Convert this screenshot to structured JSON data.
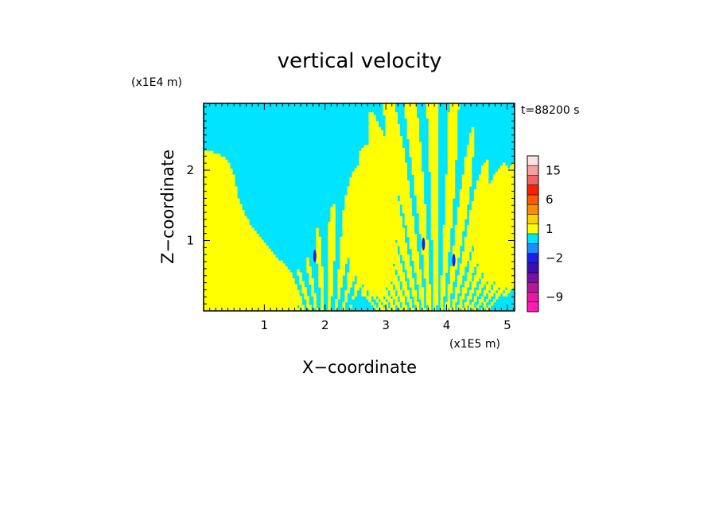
{
  "chart_data": {
    "type": "heatmap",
    "title": "vertical velocity",
    "xlabel": "X−coordinate",
    "ylabel": "Z−coordinate",
    "x_unit": "(x1E5 m)",
    "y_unit": "(x1E4 m)",
    "time_label": "t=88200 s",
    "xlim": [
      0,
      5.12
    ],
    "ylim": [
      0,
      2.95
    ],
    "x_ticks": [
      "1",
      "2",
      "3",
      "4",
      "5"
    ],
    "y_ticks": [
      "1",
      "2"
    ],
    "colorbar": {
      "levels": [
        {
          "value": -12,
          "color": "#ff1ab4"
        },
        {
          "value": -9,
          "color": "#e619a6"
        },
        {
          "value": -6,
          "color": "#b4169c"
        },
        {
          "value": -4,
          "color": "#7a10a8"
        },
        {
          "value": -3,
          "color": "#3c0fb4"
        },
        {
          "value": -2,
          "color": "#1e1ee6"
        },
        {
          "value": -1,
          "color": "#1e8cff"
        },
        {
          "value": 0,
          "color": "#00e5ff"
        },
        {
          "value": 1,
          "color": "#ffff00"
        },
        {
          "value": 2,
          "color": "#ffd200"
        },
        {
          "value": 4,
          "color": "#ff8c00"
        },
        {
          "value": 6,
          "color": "#ff5a00"
        },
        {
          "value": 8,
          "color": "#ff1e00"
        },
        {
          "value": 10,
          "color": "#f06464"
        },
        {
          "value": 15,
          "color": "#f5a0a0"
        },
        {
          "value": 20,
          "color": "#fde0e0"
        }
      ],
      "tick_labels": [
        "15",
        "6",
        "1",
        "−2",
        "−9"
      ]
    },
    "dominant_colors": {
      "negative": "#00e5ff",
      "positive": "#ffff00"
    }
  }
}
